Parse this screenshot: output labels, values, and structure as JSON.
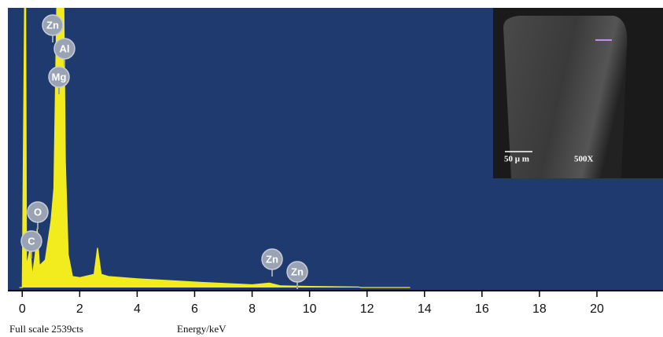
{
  "chart_data": {
    "type": "area",
    "x_label": "Energy/keV",
    "footer": "Full scale 2539cts",
    "x": [
      -0.1,
      0.0,
      0.08,
      0.12,
      0.15,
      0.28,
      0.35,
      0.45,
      0.52,
      0.6,
      0.8,
      1.0,
      1.1,
      1.2,
      1.45,
      1.5,
      1.6,
      1.75,
      2.0,
      2.5,
      2.62,
      2.75,
      3,
      4,
      6,
      8,
      8.6,
      9,
      10,
      11.7,
      11.8,
      13.5
    ],
    "values": [
      0,
      0,
      2539,
      2539,
      200,
      360,
      100,
      300,
      540,
      200,
      250,
      600,
      900,
      2539,
      2539,
      1150,
      300,
      100,
      90,
      120,
      360,
      120,
      100,
      80,
      50,
      25,
      40,
      15,
      10,
      5,
      0,
      0
    ],
    "color": "#f2ec1f",
    "background": "#1e3a6e",
    "xlim": [
      -0.5,
      22.3
    ],
    "ylim": [
      0,
      2539
    ],
    "xticks": [
      0,
      2,
      4,
      6,
      8,
      10,
      12,
      14,
      16,
      18,
      20
    ],
    "annotations": [
      "Zn",
      "Al",
      "Mg",
      "O",
      "C",
      "Zn",
      "Zn"
    ],
    "inset": {
      "scale_bar": "50 μ m",
      "magnification": "500X"
    }
  }
}
